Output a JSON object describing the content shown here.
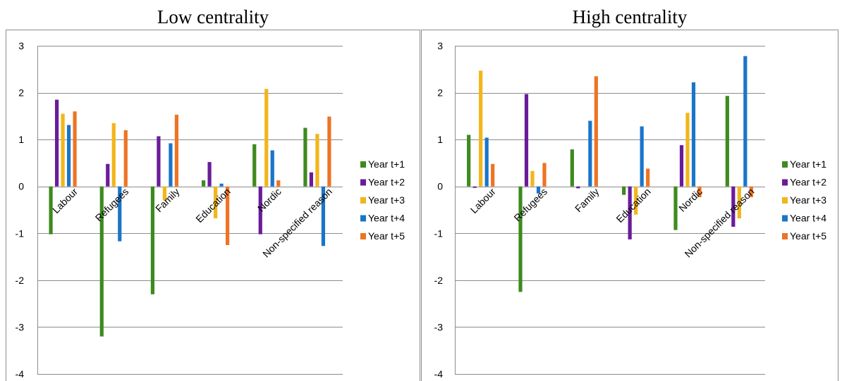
{
  "chart_data": [
    {
      "type": "bar",
      "title": "Low centrality",
      "categories": [
        "Labour",
        "Refugees",
        "Family",
        "Education",
        "Nordic",
        "Non-specified reason"
      ],
      "ylim": [
        -4,
        3
      ],
      "yticks": [
        "-4",
        "-3",
        "-2",
        "-1",
        "0",
        "1",
        "2",
        "3"
      ],
      "grid": true,
      "legend_position": "right",
      "series": [
        {
          "name": "Year t+1",
          "values": [
            -1.02,
            -3.2,
            -2.3,
            0.13,
            0.9,
            1.25
          ]
        },
        {
          "name": "Year t+2",
          "values": [
            1.85,
            0.48,
            1.07,
            0.52,
            -1.02,
            0.3
          ]
        },
        {
          "name": "Year t+3",
          "values": [
            1.55,
            1.35,
            -0.3,
            -0.68,
            2.08,
            1.12
          ]
        },
        {
          "name": "Year t+4",
          "values": [
            1.31,
            -1.17,
            0.92,
            0.06,
            0.77,
            -1.27
          ]
        },
        {
          "name": "Year t+5",
          "values": [
            1.6,
            1.2,
            1.53,
            -1.25,
            0.13,
            1.49
          ]
        }
      ]
    },
    {
      "type": "bar",
      "title": "High centrality",
      "categories": [
        "Labour",
        "Refugees",
        "Family",
        "Education",
        "Nordic",
        "Non-specified reason"
      ],
      "ylim": [
        -4,
        3
      ],
      "yticks": [
        "-4",
        "-3",
        "-2",
        "-1",
        "0",
        "1",
        "2",
        "3"
      ],
      "grid": true,
      "legend_position": "right",
      "series": [
        {
          "name": "Year t+1",
          "values": [
            1.1,
            -2.25,
            0.79,
            -0.18,
            -0.93,
            1.93
          ]
        },
        {
          "name": "Year t+2",
          "values": [
            -0.03,
            1.97,
            -0.04,
            -1.13,
            0.88,
            -0.86
          ]
        },
        {
          "name": "Year t+3",
          "values": [
            2.47,
            0.33,
            0,
            -0.6,
            1.57,
            -0.68
          ]
        },
        {
          "name": "Year t+4",
          "values": [
            1.04,
            -0.15,
            1.4,
            1.28,
            2.22,
            2.78
          ]
        },
        {
          "name": "Year t+5",
          "values": [
            0.48,
            0.5,
            2.35,
            0.38,
            -0.23,
            -0.23
          ]
        }
      ]
    }
  ],
  "colors": [
    "#3e8a1e",
    "#6a1b9a",
    "#f2b51a",
    "#1a75c9",
    "#ed7424"
  ]
}
